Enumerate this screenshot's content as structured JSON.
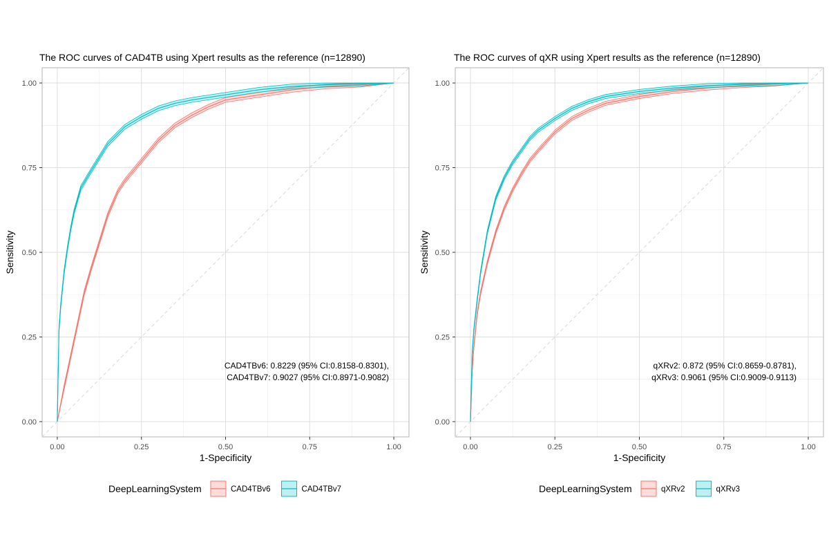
{
  "chart_data": [
    {
      "type": "line",
      "title": "The ROC curves of  CAD4TB using Xpert results as the reference (n=12890)",
      "xlabel": "1-Specificity",
      "ylabel": "Sensitivity",
      "xlim": [
        0,
        1
      ],
      "ylim": [
        0,
        1
      ],
      "x_ticks": [
        "0.00",
        "0.25",
        "0.50",
        "0.75",
        "1.00"
      ],
      "y_ticks": [
        "0.00",
        "0.25",
        "0.50",
        "0.75",
        "1.00"
      ],
      "grid": true,
      "reference_line": "diagonal",
      "legend": {
        "title": "DeepLearningSystem",
        "position": "bottom"
      },
      "annotations": [
        "CAD4TBv6: 0.8229 (95% CI:0.8158-0.8301),",
        "CAD4TBv7: 0.9027 (95% CI:0.8971-0.9082)"
      ],
      "series": [
        {
          "name": "CAD4TBv6",
          "color": "#F8766D",
          "band": 0.007,
          "x": [
            0,
            0.02,
            0.05,
            0.08,
            0.1,
            0.125,
            0.15,
            0.18,
            0.2,
            0.25,
            0.3,
            0.35,
            0.4,
            0.45,
            0.5,
            0.6,
            0.7,
            0.8,
            0.9,
            1.0
          ],
          "y": [
            0,
            0.1,
            0.24,
            0.38,
            0.45,
            0.53,
            0.61,
            0.68,
            0.71,
            0.77,
            0.83,
            0.875,
            0.905,
            0.93,
            0.95,
            0.965,
            0.98,
            0.99,
            0.995,
            1.0
          ]
        },
        {
          "name": "CAD4TBv7",
          "color": "#00BFC4",
          "band": 0.007,
          "x": [
            0,
            0.005,
            0.01,
            0.02,
            0.03,
            0.04,
            0.05,
            0.07,
            0.1,
            0.125,
            0.15,
            0.2,
            0.25,
            0.3,
            0.35,
            0.4,
            0.5,
            0.6,
            0.7,
            0.8,
            0.9,
            1.0
          ],
          "y": [
            0,
            0.27,
            0.34,
            0.44,
            0.51,
            0.57,
            0.62,
            0.69,
            0.74,
            0.78,
            0.82,
            0.87,
            0.9,
            0.925,
            0.94,
            0.95,
            0.965,
            0.98,
            0.99,
            0.995,
            0.998,
            1.0
          ]
        }
      ]
    },
    {
      "type": "line",
      "title": "The ROC curves of qXR using Xpert results as the reference (n=12890)",
      "xlabel": "1-Specificity",
      "ylabel": "Sensitivity",
      "xlim": [
        0,
        1
      ],
      "ylim": [
        0,
        1
      ],
      "x_ticks": [
        "0.00",
        "0.25",
        "0.50",
        "0.75",
        "1.00"
      ],
      "y_ticks": [
        "0.00",
        "0.25",
        "0.50",
        "0.75",
        "1.00"
      ],
      "grid": true,
      "reference_line": "diagonal",
      "legend": {
        "title": "DeepLearningSystem",
        "position": "bottom"
      },
      "annotations": [
        "qXRv2: 0.872 (95% CI:0.8659-0.8781),",
        "qXRv3: 0.9061 (95% CI:0.9009-0.9113)"
      ],
      "series": [
        {
          "name": "qXRv2",
          "color": "#F8766D",
          "band": 0.006,
          "x": [
            0,
            0.005,
            0.01,
            0.02,
            0.03,
            0.05,
            0.075,
            0.1,
            0.125,
            0.15,
            0.175,
            0.2,
            0.25,
            0.3,
            0.35,
            0.4,
            0.5,
            0.6,
            0.7,
            0.8,
            0.9,
            1.0
          ],
          "y": [
            0,
            0.15,
            0.22,
            0.32,
            0.38,
            0.47,
            0.56,
            0.63,
            0.685,
            0.73,
            0.77,
            0.8,
            0.855,
            0.895,
            0.92,
            0.94,
            0.96,
            0.975,
            0.985,
            0.992,
            0.997,
            1.0
          ]
        },
        {
          "name": "qXRv3",
          "color": "#00BFC4",
          "band": 0.006,
          "x": [
            0,
            0.005,
            0.01,
            0.02,
            0.03,
            0.05,
            0.075,
            0.1,
            0.125,
            0.15,
            0.175,
            0.2,
            0.25,
            0.3,
            0.35,
            0.4,
            0.5,
            0.6,
            0.7,
            0.8,
            0.9,
            1.0
          ],
          "y": [
            0,
            0.2,
            0.27,
            0.36,
            0.44,
            0.56,
            0.66,
            0.72,
            0.765,
            0.8,
            0.835,
            0.86,
            0.895,
            0.925,
            0.945,
            0.96,
            0.975,
            0.985,
            0.992,
            0.996,
            0.998,
            1.0
          ]
        }
      ]
    }
  ]
}
